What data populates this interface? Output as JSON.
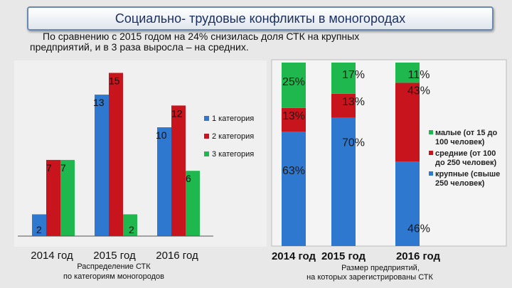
{
  "header": {
    "title": "Социально- трудовые конфликты в моногородах",
    "subtitle_line1": "По сравнению с 2015 годом на 24% снизилась доля СТК на крупных",
    "subtitle_line2": "предприятий, и в 3 раза выросла – на средних."
  },
  "colors": {
    "blue": "#2e78d0",
    "red": "#c8141c",
    "green": "#1fb84e"
  },
  "chart_data": [
    {
      "type": "bar",
      "categories": [
        "2014 год",
        "2015 год",
        "2016 год"
      ],
      "series": [
        {
          "name": "1 категория",
          "values": [
            2,
            13,
            10
          ]
        },
        {
          "name": "2 категория",
          "values": [
            7,
            15,
            12
          ]
        },
        {
          "name": "3 категория",
          "values": [
            7,
            2,
            6
          ]
        }
      ],
      "ylim": [
        0,
        16
      ],
      "legend": "center-right",
      "caption_line1": "Распределение СТК",
      "caption_line2": "по категориям моногородов"
    },
    {
      "type": "bar",
      "stacked": true,
      "percent": true,
      "categories": [
        "2014 год",
        "2015 год",
        "2016 год"
      ],
      "series": [
        {
          "name_line1": "крупные  (свыше",
          "name_line2": "250 человек)",
          "values": [
            63,
            70,
            46
          ]
        },
        {
          "name_line1": "средние (от 100",
          "name_line2": "до 250 человек)",
          "values": [
            13,
            13,
            43
          ]
        },
        {
          "name_line1": "малые (от 15 до",
          "name_line2": "100 человек)",
          "values": [
            25,
            17,
            11
          ]
        }
      ],
      "legend": "right",
      "caption_line1": "Размер предприятий,",
      "caption_line2": "на которых зарегистрированы СТК"
    }
  ]
}
